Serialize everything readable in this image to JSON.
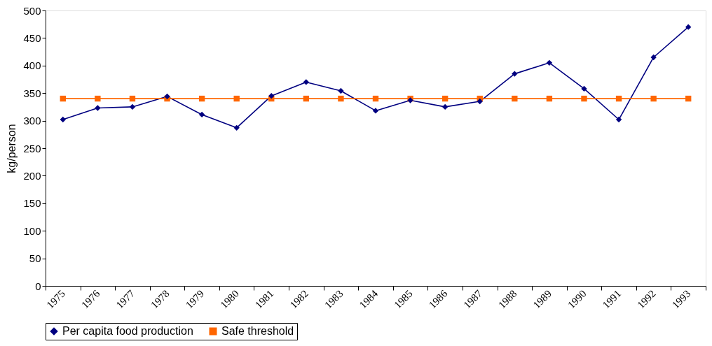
{
  "chart_data": {
    "type": "line",
    "ylabel": "kg/person",
    "categories": [
      "1975",
      "1976",
      "1977",
      "1978",
      "1979",
      "1980",
      "1981",
      "1982",
      "1983",
      "1984",
      "1985",
      "1986",
      "1987",
      "1988",
      "1989",
      "1990",
      "1991",
      "1992",
      "1993"
    ],
    "series": [
      {
        "name": "Per capita food production",
        "color": "#000080",
        "marker": "diamond",
        "values": [
          302,
          323,
          325,
          344,
          311,
          287,
          345,
          370,
          354,
          318,
          337,
          325,
          335,
          385,
          405,
          358,
          302,
          415,
          470
        ]
      },
      {
        "name": "Safe threshold",
        "color": "#ff6600",
        "marker": "square",
        "values": [
          340,
          340,
          340,
          340,
          340,
          340,
          340,
          340,
          340,
          340,
          340,
          340,
          340,
          340,
          340,
          340,
          340,
          340,
          340
        ]
      }
    ],
    "ylim": [
      0,
      500
    ],
    "yticks": [
      0,
      50,
      100,
      150,
      200,
      250,
      300,
      350,
      400,
      450,
      500
    ],
    "grid": false,
    "legend": "bottom",
    "line_style": "solid"
  }
}
